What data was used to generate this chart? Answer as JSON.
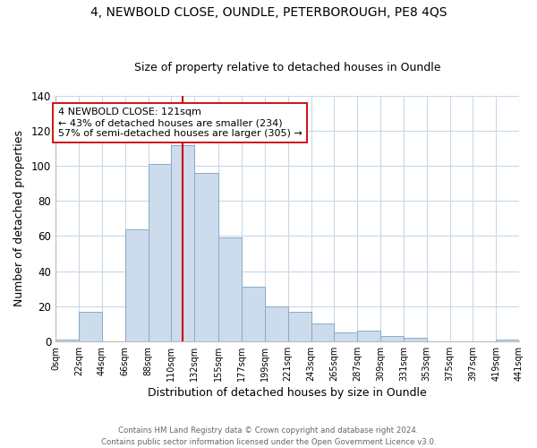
{
  "title": "4, NEWBOLD CLOSE, OUNDLE, PETERBOROUGH, PE8 4QS",
  "subtitle": "Size of property relative to detached houses in Oundle",
  "xlabel": "Distribution of detached houses by size in Oundle",
  "ylabel": "Number of detached properties",
  "bar_color": "#ccdcec",
  "bar_edgecolor": "#8aaac8",
  "vline_x": 121,
  "vline_color": "#cc0000",
  "annotation_text": "4 NEWBOLD CLOSE: 121sqm\n← 43% of detached houses are smaller (234)\n57% of semi-detached houses are larger (305) →",
  "annotation_box_edgecolor": "#cc0000",
  "annotation_box_facecolor": "#ffffff",
  "bin_edges": [
    0,
    22,
    44,
    66,
    88,
    110,
    132,
    155,
    177,
    199,
    221,
    243,
    265,
    287,
    309,
    331,
    353,
    375,
    397,
    419,
    441
  ],
  "bin_counts": [
    1,
    17,
    0,
    64,
    101,
    112,
    96,
    59,
    31,
    20,
    17,
    10,
    5,
    6,
    3,
    2,
    0,
    0,
    0,
    1
  ],
  "tick_labels": [
    "0sqm",
    "22sqm",
    "44sqm",
    "66sqm",
    "88sqm",
    "110sqm",
    "132sqm",
    "155sqm",
    "177sqm",
    "199sqm",
    "221sqm",
    "243sqm",
    "265sqm",
    "287sqm",
    "309sqm",
    "331sqm",
    "353sqm",
    "375sqm",
    "397sqm",
    "419sqm",
    "441sqm"
  ],
  "ylim": [
    0,
    140
  ],
  "yticks": [
    0,
    20,
    40,
    60,
    80,
    100,
    120,
    140
  ],
  "footer_line1": "Contains HM Land Registry data © Crown copyright and database right 2024.",
  "footer_line2": "Contains public sector information licensed under the Open Government Licence v3.0.",
  "background_color": "#ffffff",
  "grid_color": "#c8d8e8",
  "title_fontsize": 10,
  "subtitle_fontsize": 9
}
